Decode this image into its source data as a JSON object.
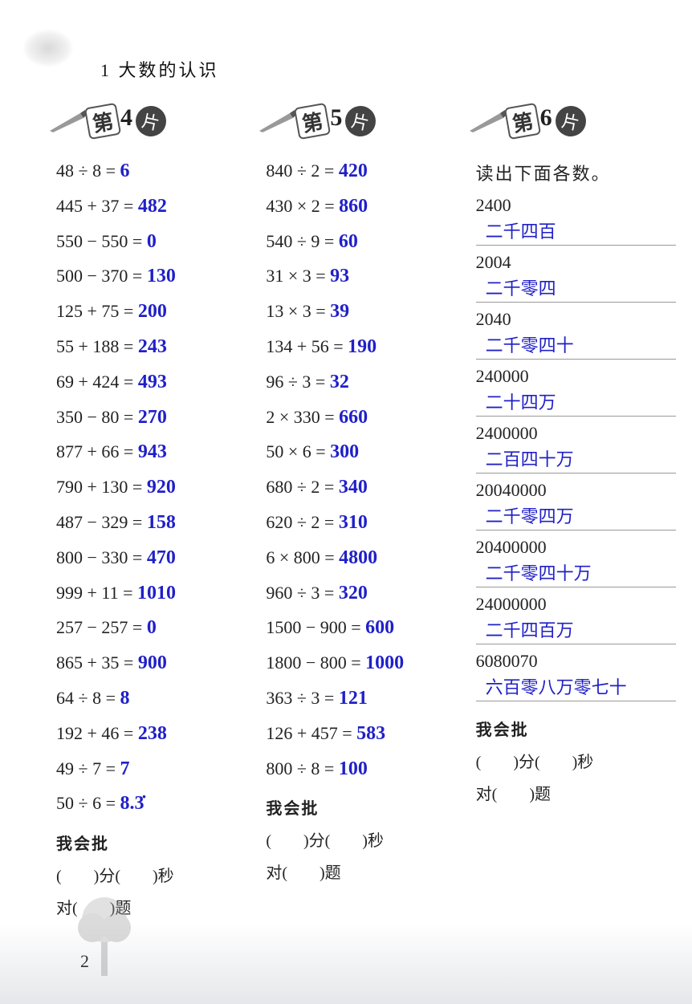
{
  "chapter_title": "1  大数的认识",
  "page_number": "2",
  "answer_color": "#2020c8",
  "text_color": "#222222",
  "sections": [
    {
      "badge_char_di": "第",
      "number": "4",
      "badge_char_pian": "片",
      "equations": [
        {
          "lhs": "48 ÷ 8 =",
          "ans": "6"
        },
        {
          "lhs": "445 + 37 =",
          "ans": "482"
        },
        {
          "lhs": "550 − 550 =",
          "ans": "0"
        },
        {
          "lhs": "500 − 370 =",
          "ans": "130"
        },
        {
          "lhs": "125 + 75 =",
          "ans": "200"
        },
        {
          "lhs": "55 + 188 =",
          "ans": "243"
        },
        {
          "lhs": "69 + 424 =",
          "ans": "493"
        },
        {
          "lhs": "350 − 80 =",
          "ans": "270"
        },
        {
          "lhs": "877 + 66 =",
          "ans": "943"
        },
        {
          "lhs": "790 + 130 =",
          "ans": "920"
        },
        {
          "lhs": "487 − 329 =",
          "ans": "158"
        },
        {
          "lhs": "800 − 330 =",
          "ans": "470"
        },
        {
          "lhs": "999 + 11 =",
          "ans": "1010"
        },
        {
          "lhs": "257 − 257 =",
          "ans": "0"
        },
        {
          "lhs": "865 + 35 =",
          "ans": "900"
        },
        {
          "lhs": "64 ÷ 8 =",
          "ans": "8"
        },
        {
          "lhs": "192 + 46 =",
          "ans": "238"
        },
        {
          "lhs": "49 ÷ 7 =",
          "ans": "7"
        },
        {
          "lhs": "50 ÷ 6 =",
          "ans": "8.3̇"
        }
      ]
    },
    {
      "badge_char_di": "第",
      "number": "5",
      "badge_char_pian": "片",
      "equations": [
        {
          "lhs": "840 ÷ 2 =",
          "ans": "420"
        },
        {
          "lhs": "430 × 2 =",
          "ans": "860"
        },
        {
          "lhs": "540 ÷ 9 =",
          "ans": "60"
        },
        {
          "lhs": "31 × 3 =",
          "ans": "93"
        },
        {
          "lhs": "13 × 3 =",
          "ans": "39"
        },
        {
          "lhs": "134 + 56 =",
          "ans": "190"
        },
        {
          "lhs": "96 ÷ 3 =",
          "ans": "32"
        },
        {
          "lhs": "2 × 330 =",
          "ans": "660"
        },
        {
          "lhs": "50 × 6 =",
          "ans": "300"
        },
        {
          "lhs": "680 ÷ 2 =",
          "ans": "340"
        },
        {
          "lhs": "620 ÷ 2 =",
          "ans": "310"
        },
        {
          "lhs": "6 × 800 =",
          "ans": "4800"
        },
        {
          "lhs": "960 ÷ 3 =",
          "ans": "320"
        },
        {
          "lhs": "1500 − 900 =",
          "ans": "600"
        },
        {
          "lhs": "1800 − 800 =",
          "ans": "1000"
        },
        {
          "lhs": "363 ÷ 3 =",
          "ans": "121"
        },
        {
          "lhs": "126 + 457 =",
          "ans": "583"
        },
        {
          "lhs": "800 ÷ 8 =",
          "ans": "100"
        }
      ]
    },
    {
      "badge_char_di": "第",
      "number": "6",
      "badge_char_pian": "片",
      "reading_prompt": "读出下面各数。",
      "readings": [
        {
          "num": "2400",
          "ans": "二千四百"
        },
        {
          "num": "2004",
          "ans": "二千零四"
        },
        {
          "num": "2040",
          "ans": "二千零四十"
        },
        {
          "num": "240000",
          "ans": "二十四万"
        },
        {
          "num": "2400000",
          "ans": "二百四十万"
        },
        {
          "num": "20040000",
          "ans": "二千零四万"
        },
        {
          "num": "20400000",
          "ans": "二千零四十万"
        },
        {
          "num": "24000000",
          "ans": "二千四百万"
        },
        {
          "num": "6080070",
          "ans": "六百零八万零七十"
        }
      ]
    }
  ],
  "footer": {
    "title": "我会批",
    "line1": "(　　)分(　　)秒",
    "line2": "对(　　)题"
  }
}
